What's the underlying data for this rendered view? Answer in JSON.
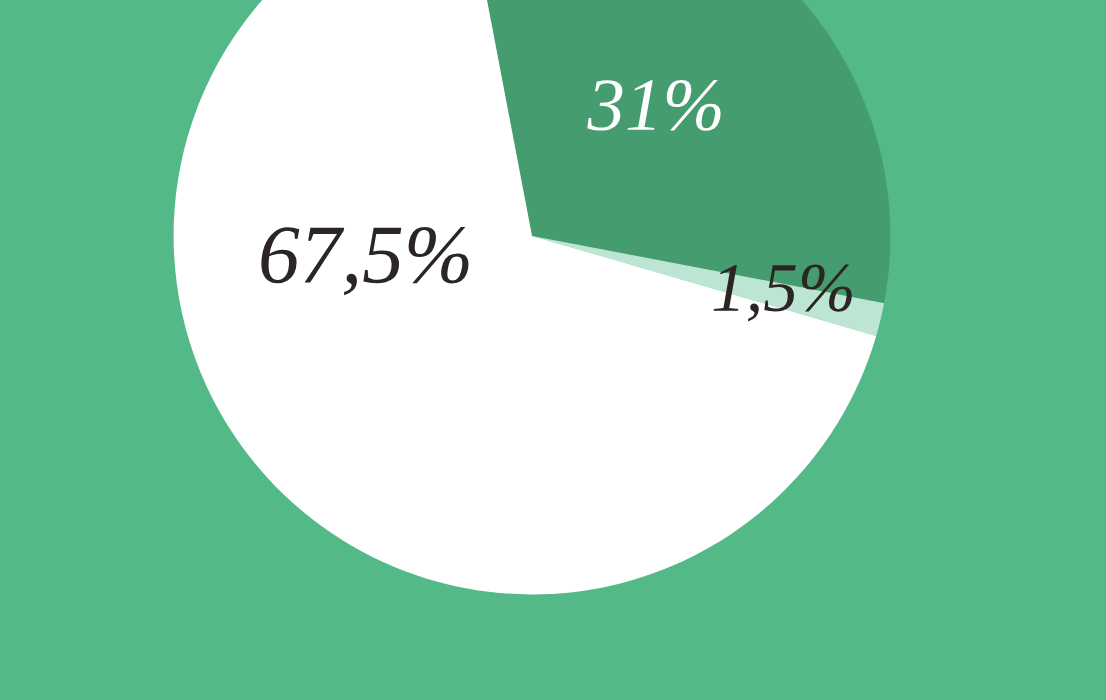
{
  "chart_data": {
    "type": "pie",
    "categories": [
      null,
      null,
      null
    ],
    "values": [
      31,
      1.5,
      67.5
    ],
    "value_labels": [
      "31%",
      "1,5%",
      "67,5%"
    ],
    "colors": [
      "#459c6e",
      "#bde5d3",
      "#ffffff"
    ]
  }
}
